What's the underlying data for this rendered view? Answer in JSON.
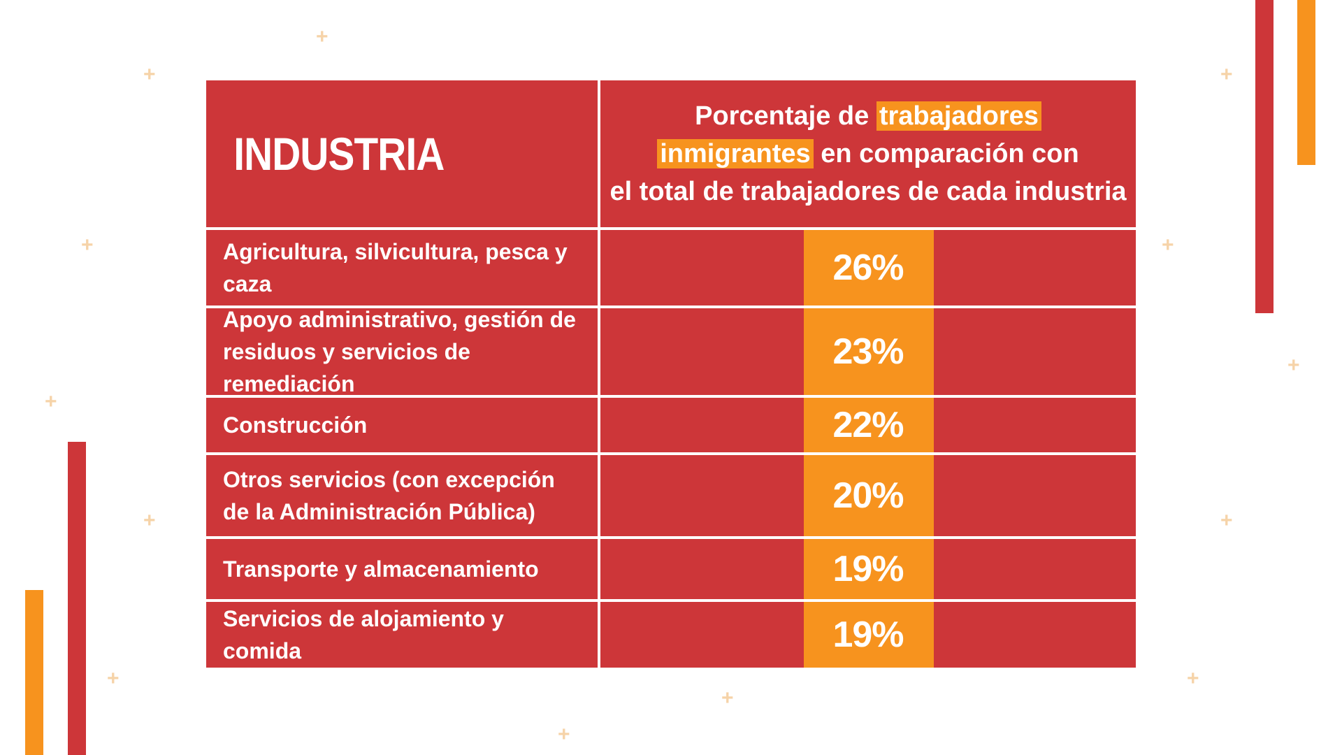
{
  "chart_data": {
    "type": "table",
    "columns": [
      "INDUSTRIA",
      "Porcentaje de trabajadores inmigrantes en comparación con el total de trabajadores de cada industria"
    ],
    "header": {
      "industry": "INDUSTRIA",
      "pct_part1": "Porcentaje de ",
      "pct_hl1": "trabajadores",
      "pct_hl2": "inmigrantes",
      "pct_part2": " en comparación con",
      "pct_line3": "el total de trabajadores de cada industria"
    },
    "rows": [
      {
        "industry": "Agricultura, silvicultura, pesca y caza",
        "value": 26,
        "label": "26%"
      },
      {
        "industry": "Apoyo administrativo, gestión de residuos y servicios de remediación",
        "value": 23,
        "label": "23%"
      },
      {
        "industry": "Construcción",
        "value": 22,
        "label": "22%"
      },
      {
        "industry": "Otros servicios (con excepción de la Administración Pública)",
        "value": 20,
        "label": "20%"
      },
      {
        "industry": "Transporte y almacenamiento",
        "value": 19,
        "label": "19%"
      },
      {
        "industry": "Servicios de alojamiento y comida",
        "value": 19,
        "label": "19%"
      }
    ]
  },
  "colors": {
    "red": "#cd3639",
    "orange": "#f7931e",
    "plus": "#f6d3a8"
  }
}
